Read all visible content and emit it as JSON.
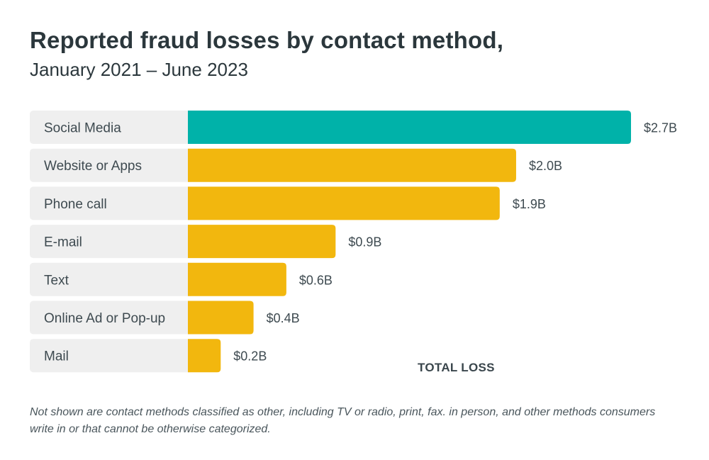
{
  "title": "Reported fraud losses by contact method,",
  "subtitle": "January 2021 – June 2023",
  "footnote": "Not shown are contact methods classified as other, including TV or radio, print, fax. in person, and other methods consumers write in or that cannot be otherwise categorized.",
  "chart_data": {
    "type": "bar",
    "orientation": "horizontal",
    "title": "Reported fraud losses by contact method,",
    "subtitle": "January 2021 – June 2023",
    "xlabel": "TOTAL LOSS",
    "ylabel": "",
    "unit": "billion USD",
    "categories": [
      "Social Media",
      "Website or Apps",
      "Phone call",
      "E-mail",
      "Text",
      "Online Ad or Pop-up",
      "Mail"
    ],
    "values": [
      2.7,
      2.0,
      1.9,
      0.9,
      0.6,
      0.4,
      0.2
    ],
    "value_labels": [
      "$2.7B",
      "$2.0B",
      "$1.9B",
      "$0.9B",
      "$0.6B",
      "$0.4B",
      "$0.2B"
    ],
    "colors": [
      "#00b2a9",
      "#f2b70e",
      "#f2b70e",
      "#f2b70e",
      "#f2b70e",
      "#f2b70e",
      "#f2b70e"
    ],
    "xlim": [
      0,
      2.7
    ],
    "grid": false,
    "legend": "none"
  }
}
